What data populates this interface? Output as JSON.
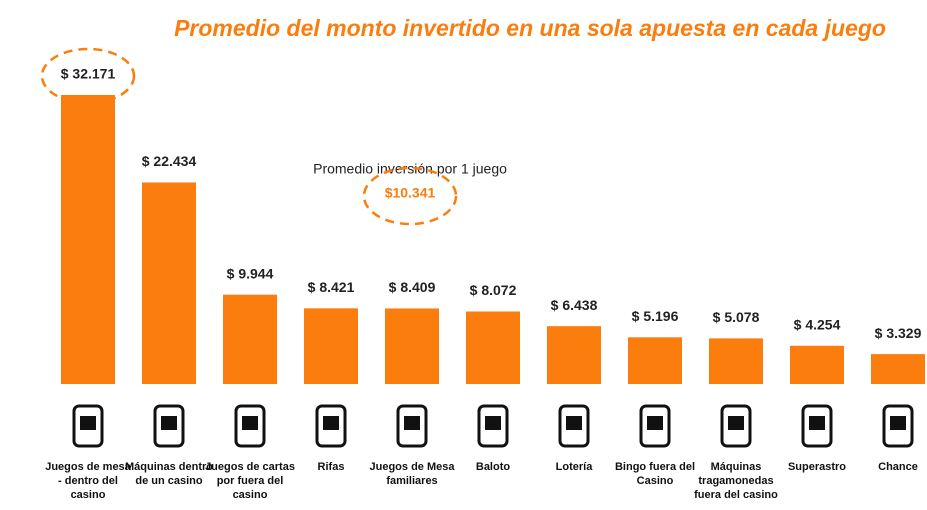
{
  "chart_data": {
    "type": "bar",
    "title": "Promedio del monto invertido en una sola apuesta en cada juego",
    "categories": [
      "Juegos de mesa - dentro del casino",
      "Máquinas dentro de un casino",
      "Juegos de cartas por fuera del casino",
      "Rifas",
      "Juegos de Mesa familiares",
      "Baloto",
      "Lotería",
      "Bingo fuera del Casino",
      "Máquinas tragamonedas fuera del casino",
      "Superastro",
      "Chance"
    ],
    "values": [
      32171,
      22434,
      9944,
      8421,
      8409,
      8072,
      6438,
      5196,
      5078,
      4254,
      3329
    ],
    "value_labels": [
      "$ 32.171",
      "$ 22.434",
      "$ 9.944",
      "$ 8.421",
      "$ 8.409",
      "$ 8.072",
      "$ 6.438",
      "$ 5.196",
      "$ 5.078",
      "$ 4.254",
      "$ 3.329"
    ],
    "color": "#fb7d0e",
    "annotation": {
      "text": "Promedio inversión por 1 juego",
      "value": 10341,
      "value_label": "$10.341"
    }
  }
}
